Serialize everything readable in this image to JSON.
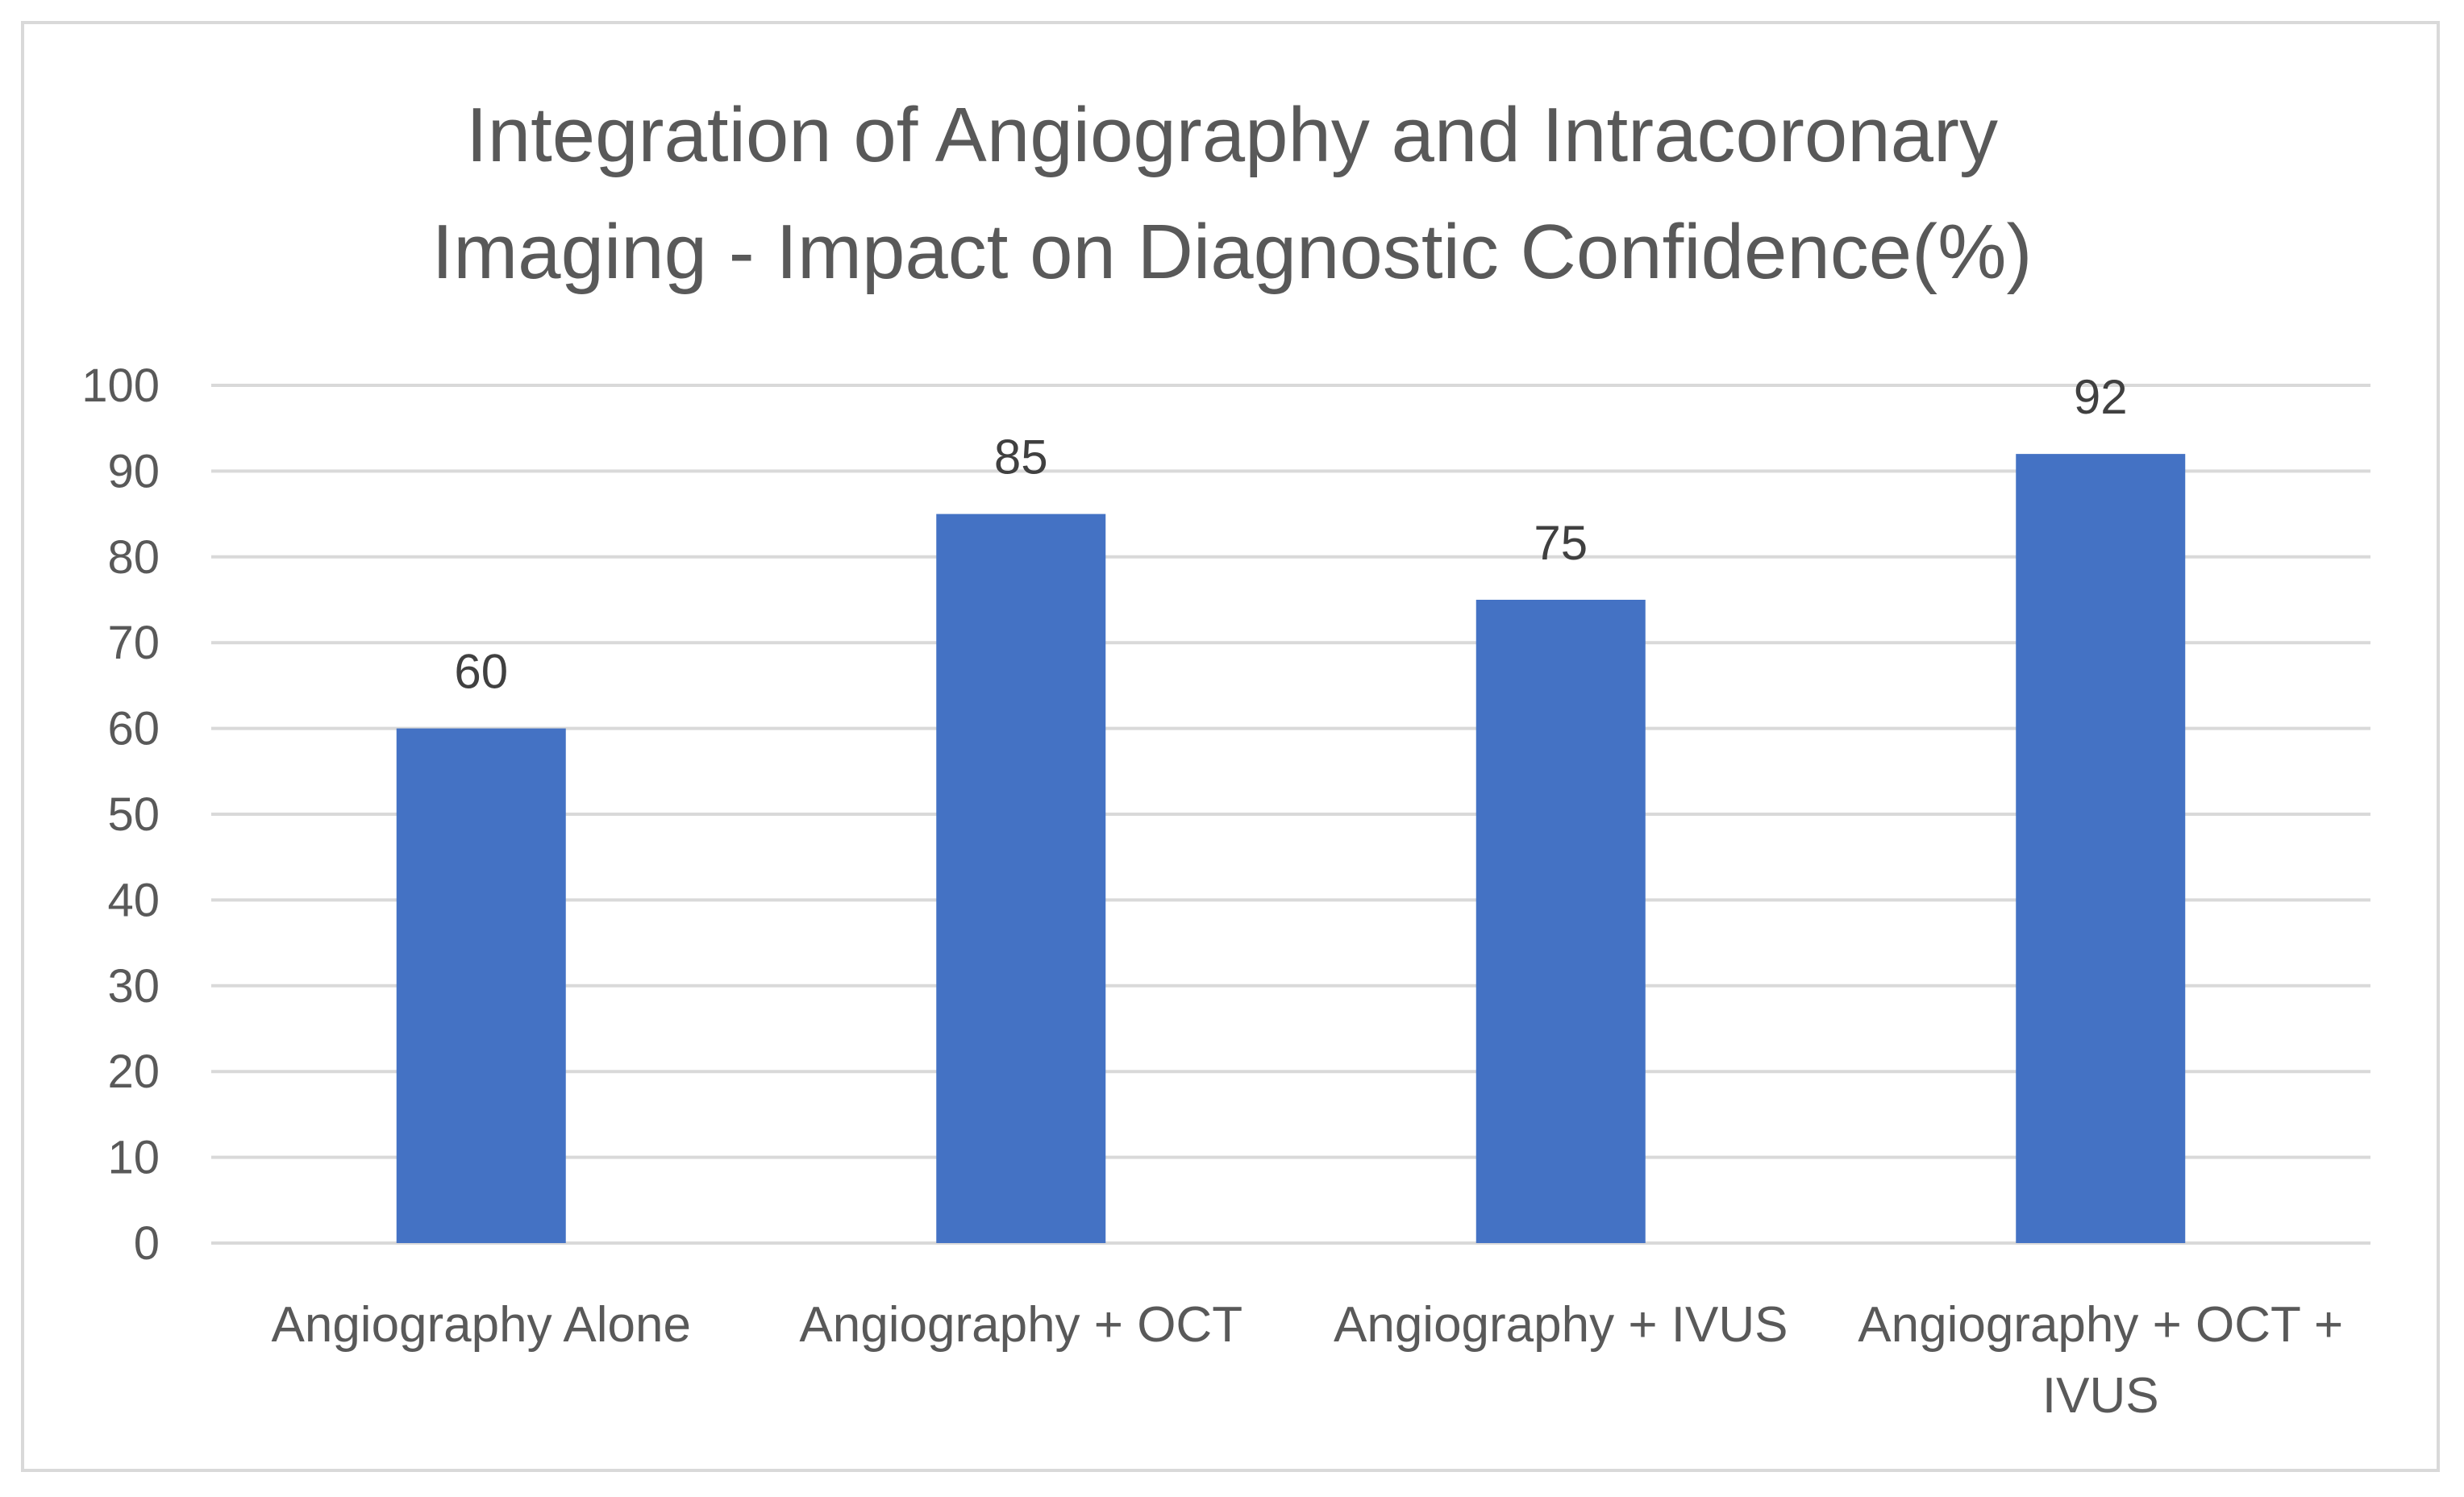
{
  "chart_data": {
    "type": "bar",
    "title_lines": [
      "Integration of Angiography and Intracoronary",
      "Imaging - Impact on Diagnostic Confidence(%)"
    ],
    "categories": [
      [
        "Angiography Alone"
      ],
      [
        "Angiography + OCT"
      ],
      [
        "Angiography + IVUS"
      ],
      [
        "Angiography + OCT +",
        "IVUS"
      ]
    ],
    "values": [
      60,
      85,
      75,
      92
    ],
    "data_labels": [
      "60",
      "85",
      "75",
      "92"
    ],
    "ylim": [
      0,
      100
    ],
    "yticks": [
      0,
      10,
      20,
      30,
      40,
      50,
      60,
      70,
      80,
      90,
      100
    ],
    "xlabel": "",
    "ylabel": "",
    "grid": true,
    "legend": "none",
    "colors": {
      "bar": "#4472c4",
      "grid": "#d9d9d9",
      "text": "#595959",
      "label": "#404040",
      "border": "#d9d9d9"
    }
  }
}
